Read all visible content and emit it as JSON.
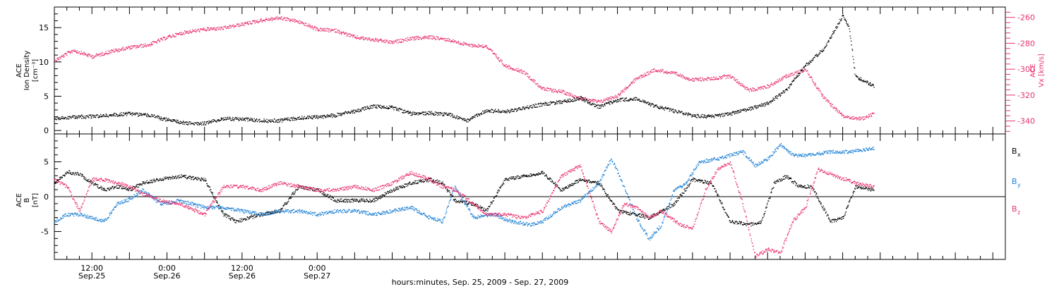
{
  "chart_data": [
    {
      "type": "scatter",
      "panel": "top",
      "left_axis": {
        "label_lines": [
          "ACE",
          "Ion Density",
          "[cm⁻³]"
        ],
        "ticks": [
          0,
          5,
          10,
          15
        ],
        "ylim": [
          -0.5,
          18
        ]
      },
      "right_axis": {
        "label_lines": [
          "ACE",
          "Vx [km/s]"
        ],
        "ticks": [
          -340,
          -320,
          -300,
          -280,
          -260
        ],
        "ylim": [
          -350,
          -252
        ]
      },
      "series": [
        {
          "key": "ion_density",
          "axis": "left",
          "color": "#000000",
          "points": [
            [
              0,
              1.8
            ],
            [
              3,
              2.0
            ],
            [
              6,
              2.1
            ],
            [
              9,
              2.3
            ],
            [
              12,
              2.5
            ],
            [
              15,
              2.3
            ],
            [
              18,
              1.6
            ],
            [
              21,
              1.1
            ],
            [
              24,
              1.1
            ],
            [
              27,
              1.8
            ],
            [
              30,
              1.7
            ],
            [
              33,
              1.5
            ],
            [
              36,
              1.5
            ],
            [
              39,
              1.9
            ],
            [
              42,
              2.0
            ],
            [
              45,
              2.3
            ],
            [
              48,
              2.9
            ],
            [
              51,
              3.6
            ],
            [
              54,
              3.4
            ],
            [
              57,
              2.5
            ],
            [
              60,
              2.6
            ],
            [
              63,
              2.4
            ],
            [
              66,
              1.5
            ],
            [
              69,
              3.0
            ],
            [
              72,
              2.8
            ],
            [
              75,
              3.3
            ],
            [
              78,
              3.9
            ],
            [
              81,
              4.2
            ],
            [
              84,
              4.8
            ],
            [
              87,
              3.5
            ],
            [
              90,
              4.5
            ],
            [
              93,
              4.7
            ],
            [
              96,
              3.6
            ],
            [
              99,
              2.9
            ],
            [
              102,
              2.2
            ],
            [
              105,
              2.1
            ],
            [
              108,
              2.5
            ],
            [
              111,
              3.2
            ],
            [
              114,
              4.0
            ],
            [
              117,
              6.0
            ],
            [
              120,
              9.5
            ],
            [
              123,
              12.0
            ],
            [
              126,
              16.8
            ],
            [
              127,
              15.0
            ],
            [
              128,
              8.0
            ],
            [
              131,
              6.5
            ]
          ]
        },
        {
          "key": "vx",
          "axis": "right",
          "color": "#e8336e",
          "points": [
            [
              0,
              -293
            ],
            [
              3,
              -285
            ],
            [
              6,
              -290
            ],
            [
              9,
              -286
            ],
            [
              12,
              -283
            ],
            [
              15,
              -281
            ],
            [
              18,
              -275
            ],
            [
              21,
              -271
            ],
            [
              24,
              -269
            ],
            [
              27,
              -268
            ],
            [
              30,
              -265
            ],
            [
              33,
              -262
            ],
            [
              36,
              -260
            ],
            [
              39,
              -263
            ],
            [
              42,
              -269
            ],
            [
              45,
              -270
            ],
            [
              48,
              -275
            ],
            [
              51,
              -277
            ],
            [
              54,
              -279
            ],
            [
              57,
              -276
            ],
            [
              60,
              -275
            ],
            [
              63,
              -277
            ],
            [
              66,
              -281
            ],
            [
              69,
              -282
            ],
            [
              72,
              -297
            ],
            [
              75,
              -302
            ],
            [
              78,
              -315
            ],
            [
              81,
              -317
            ],
            [
              84,
              -322
            ],
            [
              87,
              -325
            ],
            [
              90,
              -320
            ],
            [
              93,
              -307
            ],
            [
              96,
              -300
            ],
            [
              99,
              -303
            ],
            [
              102,
              -308
            ],
            [
              105,
              -307
            ],
            [
              108,
              -305
            ],
            [
              111,
              -316
            ],
            [
              114,
              -313
            ],
            [
              117,
              -305
            ],
            [
              120,
              -300
            ],
            [
              123,
              -322
            ],
            [
              126,
              -336
            ],
            [
              129,
              -338
            ],
            [
              131,
              -334
            ]
          ]
        }
      ]
    },
    {
      "type": "scatter",
      "panel": "bottom",
      "left_axis": {
        "label_lines": [
          "ACE",
          "B",
          "[nT]"
        ],
        "ticks": [
          -5,
          0,
          5
        ],
        "ylim": [
          -9,
          9
        ]
      },
      "legend": {
        "placement": "right",
        "entries": [
          {
            "label": "Bx",
            "main": "B",
            "sub": "x",
            "color": "#000000"
          },
          {
            "label": "By",
            "main": "B",
            "sub": "y",
            "color": "#1a7fd4"
          },
          {
            "label": "Bz",
            "main": "B",
            "sub": "z",
            "color": "#e8336e"
          }
        ]
      },
      "zero_line": true,
      "series": [
        {
          "key": "bx",
          "color": "#000000",
          "points": [
            [
              0,
              2.0
            ],
            [
              2,
              3.6
            ],
            [
              4,
              3.3
            ],
            [
              6,
              2.0
            ],
            [
              8,
              1.0
            ],
            [
              10,
              1.5
            ],
            [
              12,
              1.0
            ],
            [
              14,
              2.0
            ],
            [
              17,
              2.6
            ],
            [
              20,
              3.0
            ],
            [
              24,
              2.5
            ],
            [
              27,
              -2.5
            ],
            [
              29,
              -3.5
            ],
            [
              31,
              -3.0
            ],
            [
              33,
              -2.5
            ],
            [
              36,
              -2.0
            ],
            [
              39,
              1.5
            ],
            [
              42,
              1.0
            ],
            [
              45,
              -0.5
            ],
            [
              48,
              -0.5
            ],
            [
              51,
              -0.5
            ],
            [
              54,
              1.0
            ],
            [
              57,
              2.0
            ],
            [
              60,
              2.5
            ],
            [
              62,
              2.0
            ],
            [
              64,
              -0.5
            ],
            [
              67,
              -1.0
            ],
            [
              69,
              -2.0
            ],
            [
              72,
              2.5
            ],
            [
              75,
              3.0
            ],
            [
              78,
              3.5
            ],
            [
              81,
              1.0
            ],
            [
              84,
              2.5
            ],
            [
              87,
              2.0
            ],
            [
              90,
              -2.0
            ],
            [
              93,
              -2.5
            ],
            [
              95,
              -3.0
            ],
            [
              97,
              -2.0
            ],
            [
              99,
              -1.0
            ],
            [
              102,
              2.5
            ],
            [
              105,
              2.0
            ],
            [
              108,
              -3.5
            ],
            [
              111,
              -4.0
            ],
            [
              113,
              -3.5
            ],
            [
              115,
              2.0
            ],
            [
              117,
              3.0
            ],
            [
              119,
              1.5
            ],
            [
              121,
              1.5
            ],
            [
              124,
              -3.5
            ],
            [
              126,
              -3.0
            ],
            [
              128,
              1.5
            ],
            [
              131,
              1.0
            ]
          ]
        },
        {
          "key": "by",
          "color": "#1a7fd4",
          "points": [
            [
              0,
              -3.5
            ],
            [
              2,
              -2.5
            ],
            [
              4,
              -2.5
            ],
            [
              6,
              -3.0
            ],
            [
              8,
              -3.5
            ],
            [
              10,
              -1.0
            ],
            [
              12,
              -0.3
            ],
            [
              14,
              1.0
            ],
            [
              17,
              -1.0
            ],
            [
              20,
              -0.5
            ],
            [
              24,
              -1.5
            ],
            [
              27,
              -1.5
            ],
            [
              30,
              -2.0
            ],
            [
              33,
              -2.5
            ],
            [
              36,
              -2.0
            ],
            [
              39,
              -2.0
            ],
            [
              42,
              -2.5
            ],
            [
              45,
              -2.0
            ],
            [
              48,
              -2.0
            ],
            [
              51,
              -2.5
            ],
            [
              54,
              -2.0
            ],
            [
              57,
              -1.5
            ],
            [
              60,
              -3.0
            ],
            [
              62,
              -3.5
            ],
            [
              64,
              1.5
            ],
            [
              67,
              -3.0
            ],
            [
              70,
              -2.5
            ],
            [
              73,
              -3.5
            ],
            [
              76,
              -4.0
            ],
            [
              78,
              -3.5
            ],
            [
              81,
              -1.5
            ],
            [
              84,
              -0.5
            ],
            [
              87,
              2.0
            ],
            [
              89,
              5.5
            ],
            [
              91,
              1.5
            ],
            [
              93,
              -3.0
            ],
            [
              95,
              -6.0
            ],
            [
              97,
              -4.0
            ],
            [
              99,
              1.0
            ],
            [
              101,
              2.0
            ],
            [
              103,
              5.0
            ],
            [
              106,
              5.5
            ],
            [
              108,
              6.0
            ],
            [
              110,
              6.5
            ],
            [
              112,
              4.5
            ],
            [
              114,
              5.5
            ],
            [
              116,
              7.5
            ],
            [
              118,
              6.0
            ],
            [
              121,
              6.0
            ],
            [
              124,
              6.5
            ],
            [
              127,
              6.5
            ],
            [
              131,
              7.0
            ]
          ]
        },
        {
          "key": "bz",
          "color": "#e8336e",
          "points": [
            [
              0,
              2.5
            ],
            [
              2,
              1.5
            ],
            [
              4,
              -2.0
            ],
            [
              6,
              2.5
            ],
            [
              8,
              2.5
            ],
            [
              10,
              2.0
            ],
            [
              12,
              1.5
            ],
            [
              14,
              0.5
            ],
            [
              17,
              -0.5
            ],
            [
              20,
              -1.0
            ],
            [
              24,
              -2.5
            ],
            [
              27,
              1.5
            ],
            [
              30,
              1.5
            ],
            [
              33,
              1.0
            ],
            [
              36,
              2.0
            ],
            [
              39,
              1.5
            ],
            [
              42,
              1.0
            ],
            [
              45,
              1.0
            ],
            [
              48,
              1.5
            ],
            [
              51,
              1.0
            ],
            [
              54,
              2.0
            ],
            [
              57,
              3.5
            ],
            [
              60,
              2.5
            ],
            [
              62,
              1.5
            ],
            [
              64,
              1.0
            ],
            [
              67,
              -1.0
            ],
            [
              69,
              -2.5
            ],
            [
              72,
              -2.5
            ],
            [
              75,
              -3.0
            ],
            [
              78,
              -2.0
            ],
            [
              81,
              3.0
            ],
            [
              84,
              4.5
            ],
            [
              87,
              -3.5
            ],
            [
              89,
              -5.0
            ],
            [
              91,
              -1.0
            ],
            [
              93,
              -1.5
            ],
            [
              95,
              -3.0
            ],
            [
              97,
              -2.0
            ],
            [
              100,
              -4.0
            ],
            [
              102,
              -4.5
            ],
            [
              104,
              1.0
            ],
            [
              106,
              4.0
            ],
            [
              108,
              5.0
            ],
            [
              110,
              -1.0
            ],
            [
              112,
              -8.5
            ],
            [
              114,
              -7.5
            ],
            [
              116,
              -8.0
            ],
            [
              118,
              -3.5
            ],
            [
              120,
              -1.5
            ],
            [
              122,
              4.0
            ],
            [
              125,
              3.0
            ],
            [
              128,
              2.0
            ],
            [
              131,
              1.5
            ]
          ]
        }
      ]
    }
  ],
  "x_axis": {
    "unit": "hours since Sep.25 00:00",
    "xlim": [
      6,
      158
    ],
    "ticks": [
      {
        "x": 12,
        "line1": "12:00",
        "line2": "Sep.25"
      },
      {
        "x": 24,
        "line1": "0:00",
        "line2": "Sep.26"
      },
      {
        "x": 36,
        "line1": "12:00",
        "line2": "Sep.26"
      },
      {
        "x": 48,
        "line1": "0:00",
        "line2": "Sep.27"
      }
    ],
    "title": "hours:minutes, Sep. 25, 2009 - Sep. 27, 2009"
  },
  "colors": {
    "density": "#000000",
    "vx": "#e8336e",
    "bx": "#000000",
    "by": "#1a7fd4",
    "bz": "#e8336e",
    "axis": "#000000"
  }
}
